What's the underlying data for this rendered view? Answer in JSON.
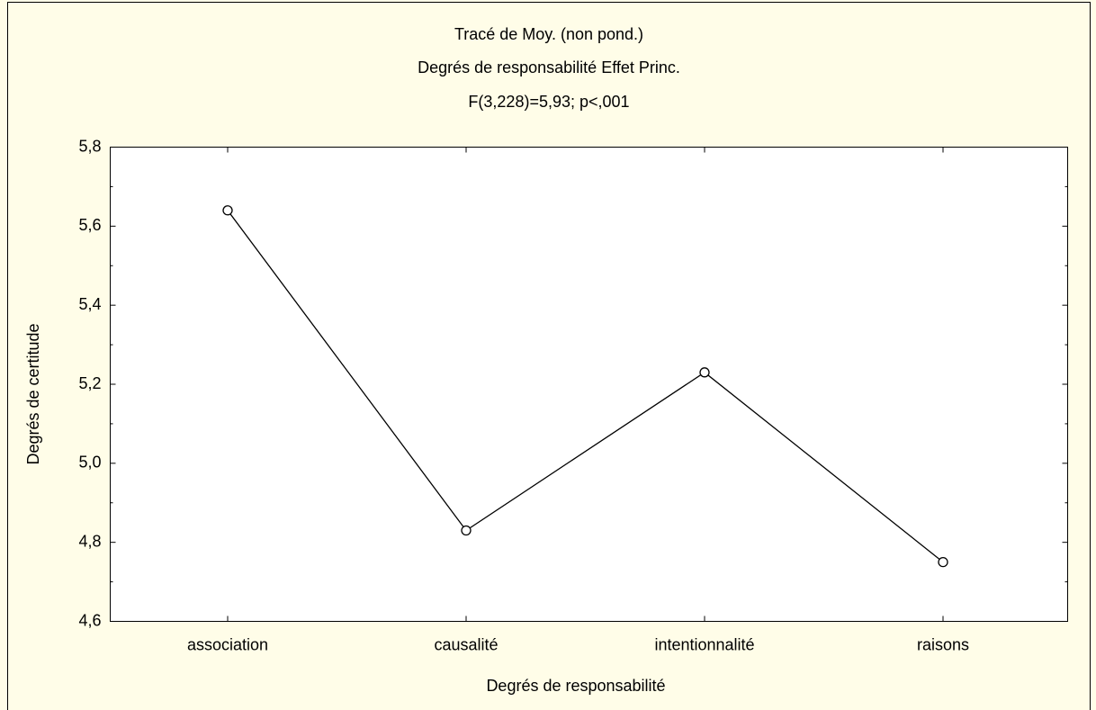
{
  "chart_data": {
    "type": "line",
    "title": "Tracé de Moy. (non pond.)",
    "subtitle": "Degrés de responsabilité Effet Princ.",
    "annotation": "F(3,228)=5,93; p<,001",
    "x_label": "Degrés de responsabilité",
    "y_label": "Degrés de certitude",
    "categories": [
      "association",
      "causalité",
      "intentionnalité",
      "raisons"
    ],
    "series": [
      {
        "name": "Degrés de certitude",
        "color": "#000000",
        "values": [
          5.64,
          4.83,
          5.23,
          4.75
        ]
      }
    ],
    "ylim": [
      4.6,
      5.8
    ],
    "yticks": [
      {
        "value": 4.6,
        "label": "4,6"
      },
      {
        "value": 4.8,
        "label": "4,8"
      },
      {
        "value": 5.0,
        "label": "5,0"
      },
      {
        "value": 5.2,
        "label": "5,2"
      },
      {
        "value": 5.4,
        "label": "5,4"
      },
      {
        "value": 5.6,
        "label": "5,6"
      },
      {
        "value": 5.8,
        "label": "5,8"
      }
    ],
    "grid": false
  }
}
